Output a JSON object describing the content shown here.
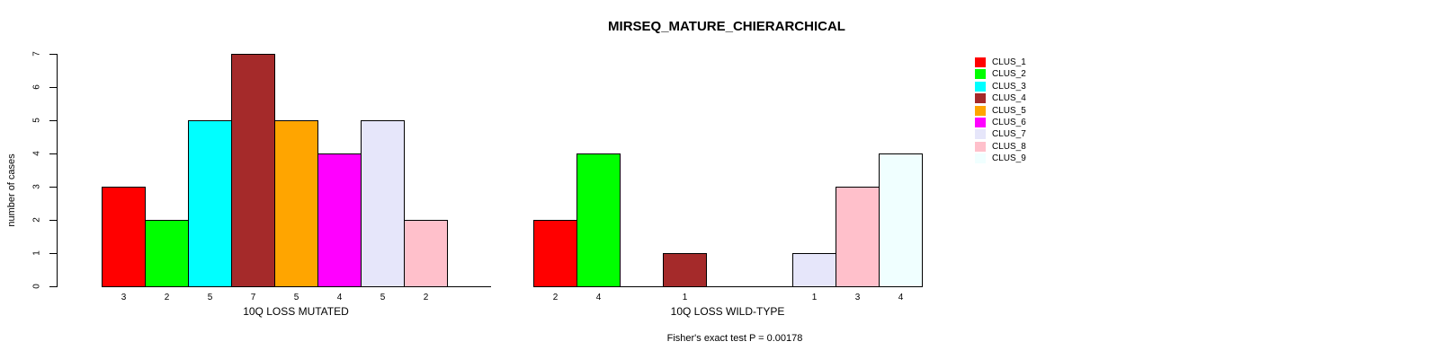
{
  "title": "MIRSEQ_MATURE_CHIERARCHICAL",
  "y_axis_label": "number of cases",
  "footer": "Fisher's exact test P = 0.00178",
  "palette": [
    "#FF0000",
    "#00FF00",
    "#00FFFF",
    "#A52A2A",
    "#FFA500",
    "#FF00FF",
    "#E6E6FA",
    "#FFC0CB",
    "#F0FFFF"
  ],
  "legend": {
    "position": "right",
    "items": [
      {
        "label": "CLUS_1",
        "color": "#FF0000"
      },
      {
        "label": "CLUS_2",
        "color": "#00FF00"
      },
      {
        "label": "CLUS_3",
        "color": "#00FFFF"
      },
      {
        "label": "CLUS_4",
        "color": "#A52A2A"
      },
      {
        "label": "CLUS_5",
        "color": "#FFA500"
      },
      {
        "label": "CLUS_6",
        "color": "#FF00FF"
      },
      {
        "label": "CLUS_7",
        "color": "#E6E6FA"
      },
      {
        "label": "CLUS_8",
        "color": "#FFC0CB"
      },
      {
        "label": "CLUS_9",
        "color": "#F0FFFF"
      }
    ]
  },
  "chart_data": [
    {
      "type": "bar",
      "title": "MIRSEQ_MATURE_CHIERARCHICAL",
      "xlabel": "10Q LOSS MUTATED",
      "ylabel": "number of cases",
      "categories": [
        "CLUS_1",
        "CLUS_2",
        "CLUS_3",
        "CLUS_4",
        "CLUS_5",
        "CLUS_6",
        "CLUS_7",
        "CLUS_8",
        "CLUS_9"
      ],
      "values": [
        3,
        2,
        5,
        7,
        5,
        4,
        5,
        2,
        0
      ],
      "bar_labels": [
        "3",
        "2",
        "5",
        "7",
        "5",
        "4",
        "5",
        "2",
        ""
      ],
      "colors": [
        "#FF0000",
        "#00FF00",
        "#00FFFF",
        "#A52A2A",
        "#FFA500",
        "#FF00FF",
        "#E6E6FA",
        "#FFC0CB",
        "#F0FFFF"
      ],
      "ylim": [
        0,
        7
      ],
      "yticks": [
        0,
        1,
        2,
        3,
        4,
        5,
        6,
        7
      ],
      "grid": false,
      "legend_position": "right"
    },
    {
      "type": "bar",
      "title": "",
      "xlabel": "10Q LOSS WILD-TYPE",
      "ylabel": "",
      "categories": [
        "CLUS_1",
        "CLUS_2",
        "CLUS_3",
        "CLUS_4",
        "CLUS_5",
        "CLUS_6",
        "CLUS_7",
        "CLUS_8",
        "CLUS_9"
      ],
      "values": [
        2,
        4,
        0,
        1,
        0,
        0,
        1,
        3,
        4
      ],
      "bar_labels": [
        "2",
        "4",
        "",
        "1",
        "",
        "",
        "1",
        "3",
        "4"
      ],
      "colors": [
        "#FF0000",
        "#00FF00",
        "#00FFFF",
        "#A52A2A",
        "#FFA500",
        "#FF00FF",
        "#E6E6FA",
        "#FFC0CB",
        "#F0FFFF"
      ],
      "ylim": [
        0,
        7
      ],
      "yticks": [
        0,
        1,
        2,
        3,
        4,
        5,
        6,
        7
      ],
      "grid": false,
      "legend_position": "right"
    }
  ]
}
